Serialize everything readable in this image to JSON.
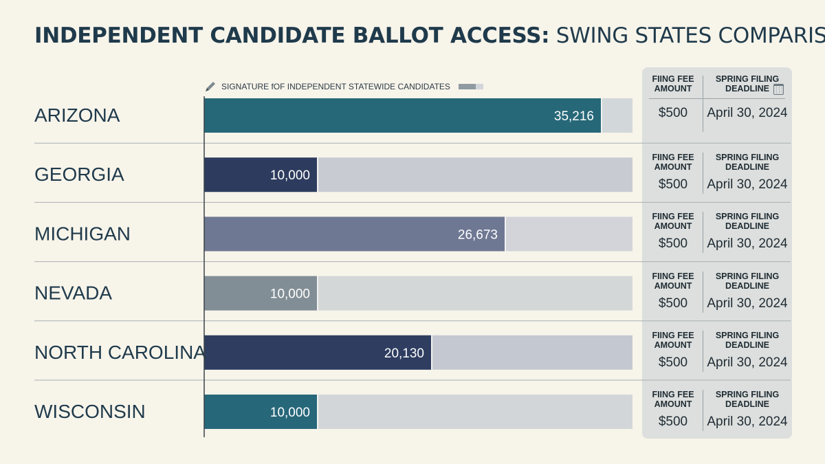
{
  "title": {
    "bold": "INDEPENDENT CANDIDATE BALLOT ACCESS:",
    "light": " SWING STATES COMPARISON"
  },
  "legend": {
    "icon": "pen-icon",
    "label": "SIGNATURE fOF INDEPENDENT STATEWIDE CANDIDATES"
  },
  "table": {
    "fee_header_line1": "FIING FEE",
    "fee_header_line2": "AMOUNT",
    "deadline_header_line1": "SPRING FILING",
    "deadline_header_line2": "DEADLINE",
    "deadline_icon": "calendar-icon",
    "rows": [
      {
        "fee": "$500",
        "deadline": "April 30, 2024"
      },
      {
        "fee": "$500",
        "deadline": "April 30, 2024"
      },
      {
        "fee": "$500",
        "deadline": "April 30, 2024"
      },
      {
        "fee": "$500",
        "deadline": "April 30, 2024"
      },
      {
        "fee": "$500",
        "deadline": "April 30, 2024"
      },
      {
        "fee": "$500",
        "deadline": "April 30, 2024"
      }
    ]
  },
  "chart_data": {
    "type": "bar",
    "orientation": "horizontal",
    "title": "INDEPENDENT CANDIDATE BALLOT ACCESS: SWING STATES COMPARISON",
    "categories": [
      "ARIZONA",
      "GEORGIA",
      "MICHIGAN",
      "NEVADA",
      "NORTH CAROLINA",
      "WISCONSIN"
    ],
    "series": [
      {
        "name": "SIGNATURE fOF INDEPENDENT STATEWIDE CANDIDATES",
        "values": [
          35216,
          10000,
          26673,
          10000,
          20130,
          10000
        ],
        "labels": [
          "35,216",
          "10,000",
          "26,673",
          "10,000",
          "20,130",
          "10,000"
        ]
      }
    ],
    "xlim": [
      0,
      38000
    ],
    "colors": [
      "#266878",
      "#2d3c5e",
      "#6f7893",
      "#828e95",
      "#2e3d60",
      "#27677a"
    ],
    "track_colors": [
      "#d2d8da",
      "#c8cbd2",
      "#d3d3da",
      "#d4d7d8",
      "#c4c8d1",
      "#d3d6d8"
    ],
    "grid": false,
    "legend_position": "top-left"
  }
}
